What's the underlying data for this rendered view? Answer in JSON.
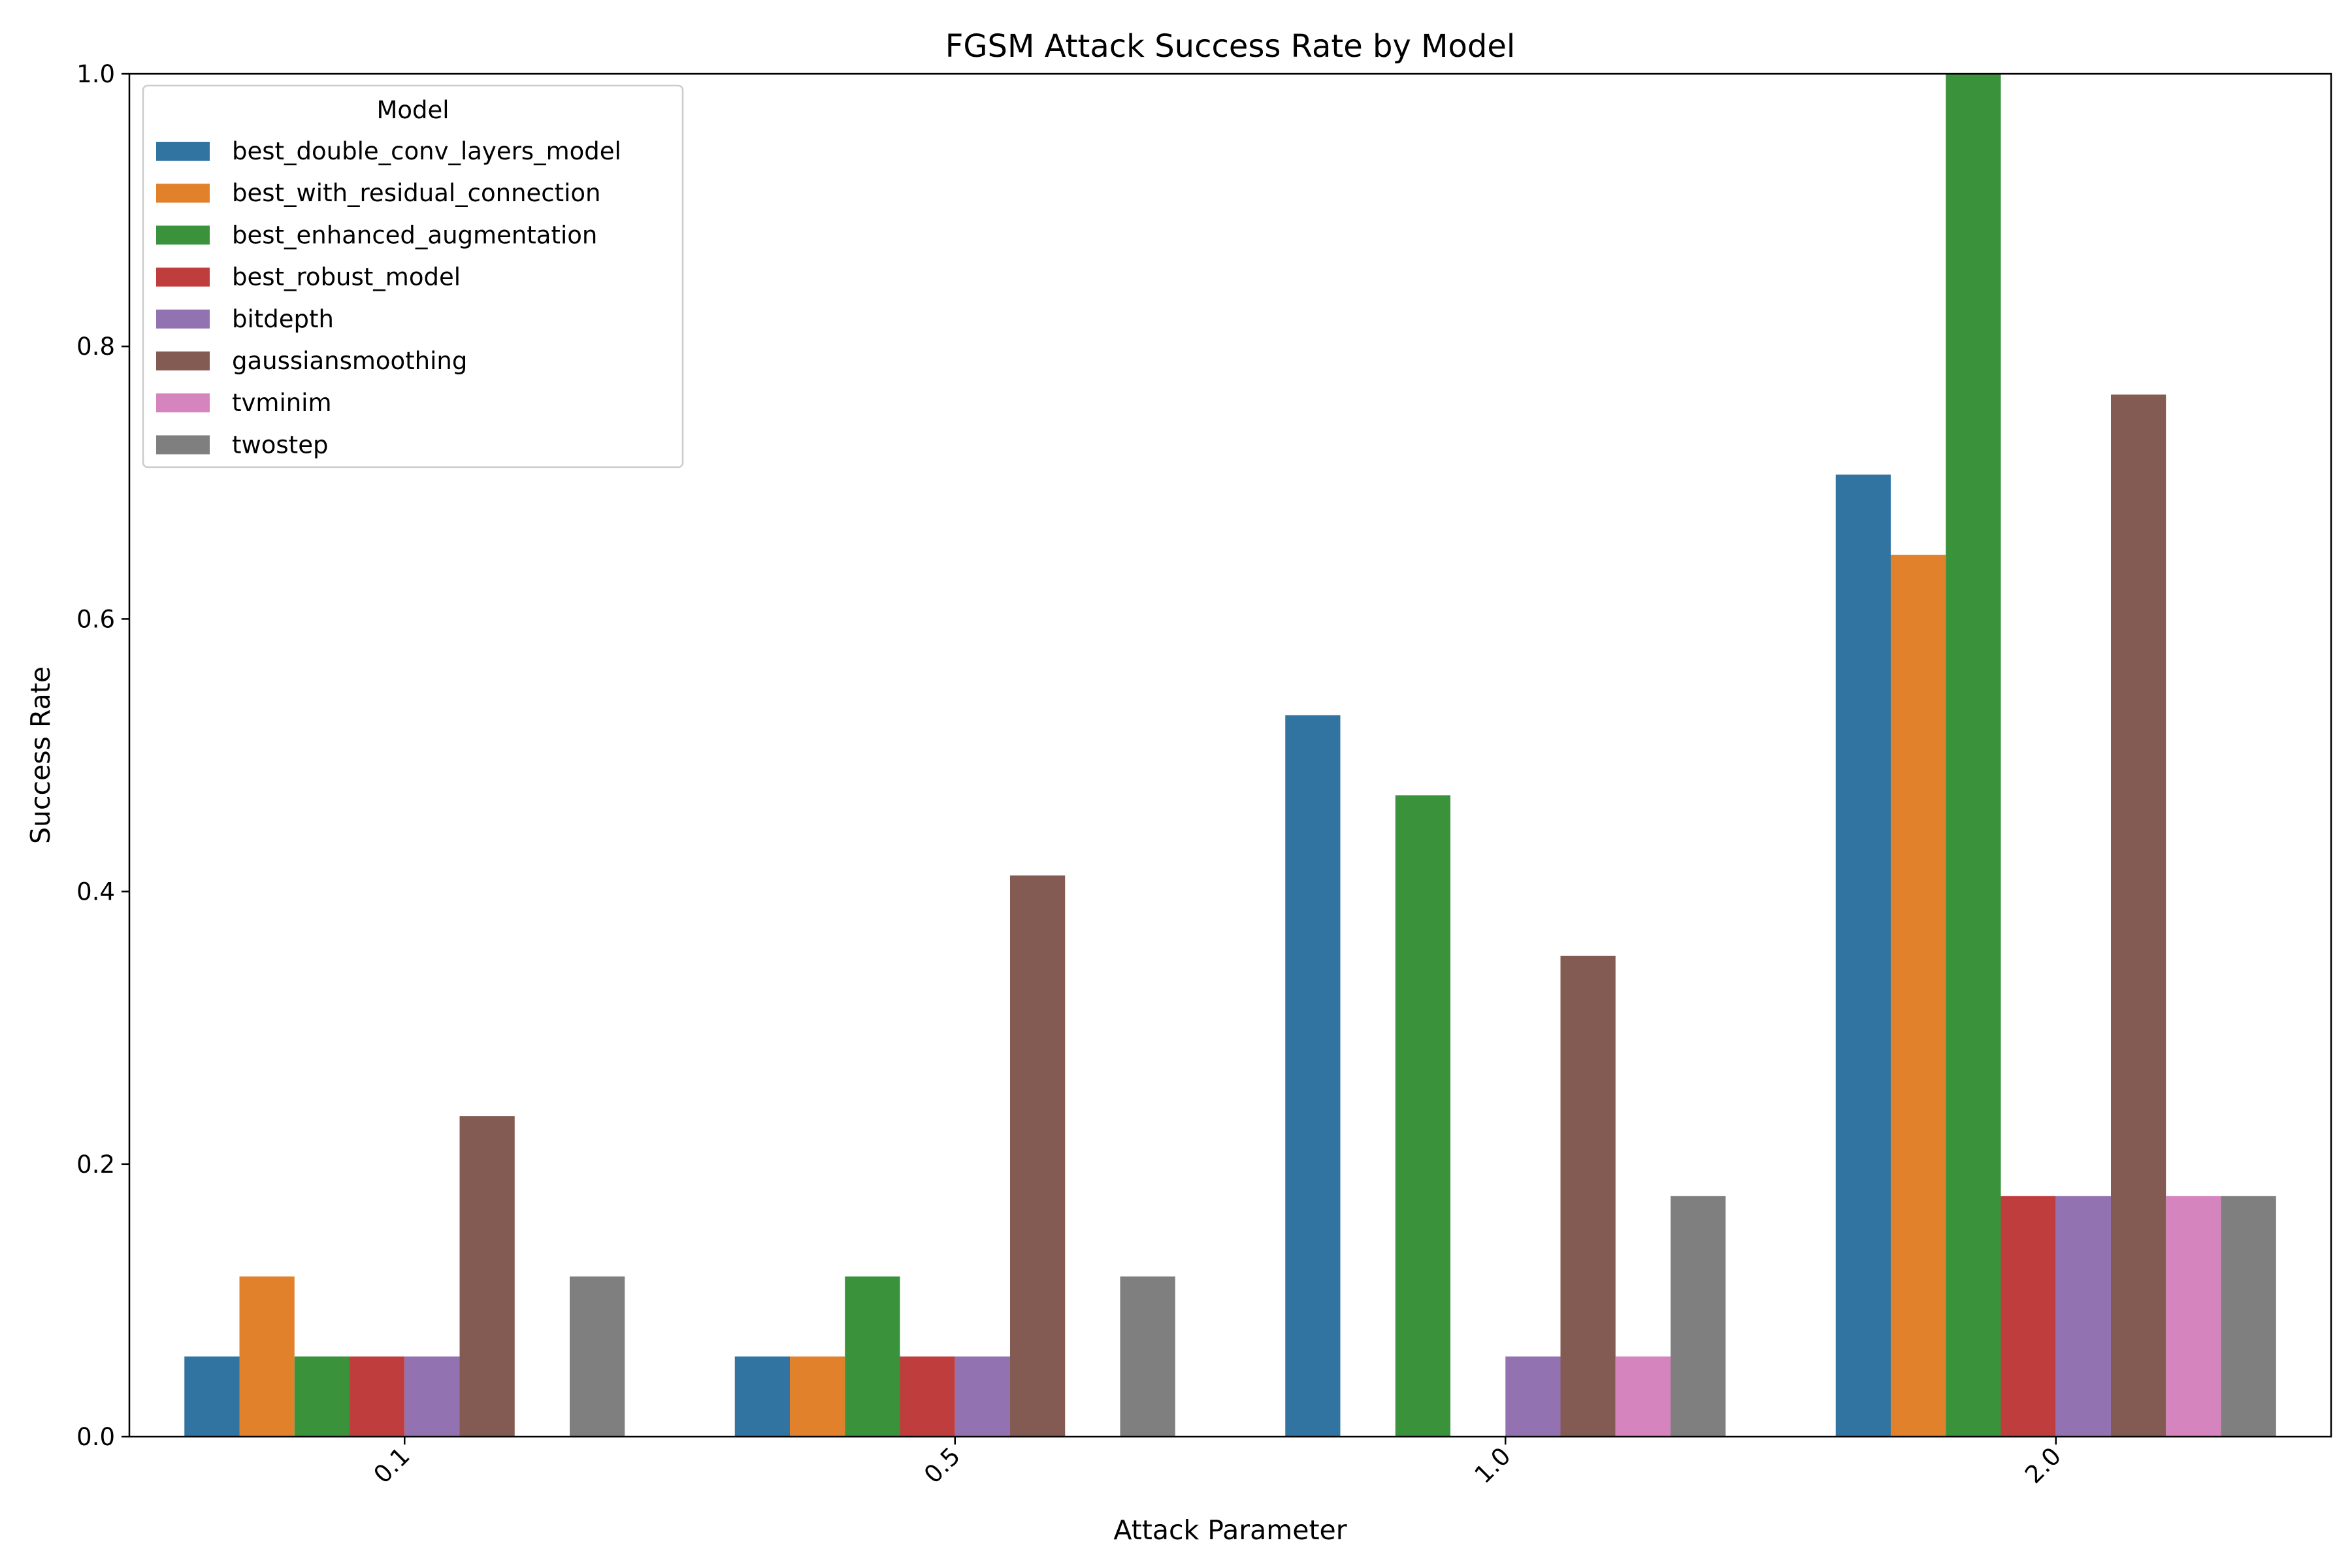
{
  "chart_data": {
    "type": "bar",
    "title": "FGSM Attack Success Rate by Model",
    "xlabel": "Attack Parameter",
    "ylabel": "Success Rate",
    "ylim": [
      0,
      1.0
    ],
    "yticks": [
      "0.0",
      "0.2",
      "0.4",
      "0.6",
      "0.8",
      "1.0"
    ],
    "categories": [
      "0.1",
      "0.5",
      "1.0",
      "2.0"
    ],
    "legend_title": "Model",
    "legend_position": "top-left",
    "grid": false,
    "series": [
      {
        "name": "best_double_conv_layers_model",
        "color": "#3274a1",
        "values": [
          0.0588,
          0.0588,
          0.5294,
          0.7059
        ]
      },
      {
        "name": "best_with_residual_connection",
        "color": "#e1812c",
        "values": [
          0.1176,
          0.0588,
          0.0,
          0.6471
        ]
      },
      {
        "name": "best_enhanced_augmentation",
        "color": "#3a923a",
        "values": [
          0.0588,
          0.1176,
          0.4706,
          1.0
        ]
      },
      {
        "name": "best_robust_model",
        "color": "#c03d3e",
        "values": [
          0.0588,
          0.0588,
          0.0,
          0.1765
        ]
      },
      {
        "name": "bitdepth",
        "color": "#9372b2",
        "values": [
          0.0588,
          0.0588,
          0.0588,
          0.1765
        ]
      },
      {
        "name": "gaussiansmoothing",
        "color": "#845b53",
        "values": [
          0.2353,
          0.4118,
          0.3529,
          0.7647
        ]
      },
      {
        "name": "tvminim",
        "color": "#d684bd",
        "values": [
          0.0,
          0.0,
          0.0588,
          0.1765
        ]
      },
      {
        "name": "twostep",
        "color": "#7f7f7f",
        "values": [
          0.1176,
          0.1176,
          0.1765,
          0.1765
        ]
      }
    ]
  }
}
